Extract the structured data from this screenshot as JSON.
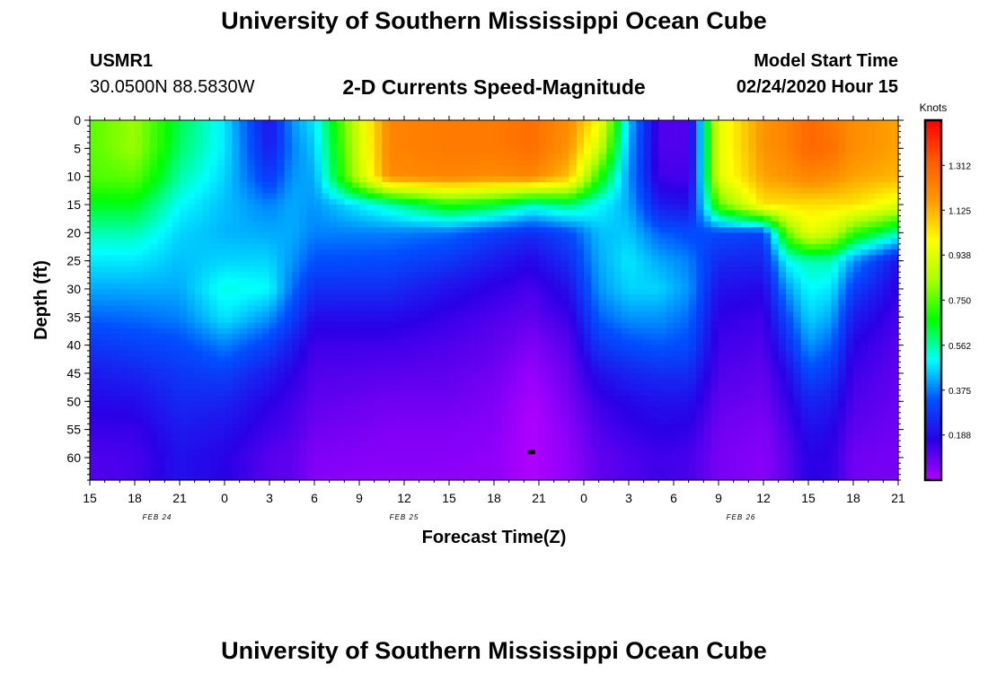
{
  "header": {
    "title_top": "University of Southern Mississippi Ocean Cube",
    "station_id": "USMR1",
    "station_coords": "30.0500N 88.5830W",
    "chart_subtitle": "2-D Currents Speed-Magnitude",
    "model_start_label": "Model Start Time",
    "model_start_value": "02/24/2020 Hour 15",
    "title_bottom": "University of Southern Mississippi Ocean Cube"
  },
  "colors": {
    "background": "#ffffff",
    "marker": "#000000",
    "colormap": [
      "#b000ff",
      "#2a00e6",
      "#0050ff",
      "#00ffff",
      "#00ff00",
      "#aaff00",
      "#ffff00",
      "#ff9900",
      "#ff5a00",
      "#ff0000"
    ]
  },
  "chart_data": {
    "type": "heatmap",
    "title": "2-D Currents Speed-Magnitude",
    "xlabel": "Forecast Time(Z)",
    "ylabel": "Depth (ft)",
    "x_hours_range": [
      0,
      54
    ],
    "x_tick_labels": [
      "15",
      "18",
      "21",
      "0",
      "3",
      "6",
      "9",
      "12",
      "15",
      "18",
      "21",
      "0",
      "3",
      "6",
      "9",
      "12",
      "15",
      "18",
      "21"
    ],
    "date_labels": [
      {
        "label": "FEB 24",
        "hour": 4.5
      },
      {
        "label": "FEB 25",
        "hour": 21
      },
      {
        "label": "FEB 26",
        "hour": 43.5
      }
    ],
    "ylim": [
      0,
      64
    ],
    "y_ticks": [
      0,
      5,
      10,
      15,
      20,
      25,
      30,
      35,
      40,
      45,
      50,
      55,
      60
    ],
    "colorbar": {
      "title": "Knots",
      "range": [
        0,
        1.5
      ],
      "tick_values": [
        0.188,
        0.375,
        0.562,
        0.75,
        0.938,
        1.125,
        1.312
      ],
      "tick_labels": [
        "0.188",
        "0.375",
        "0.562",
        "0.750",
        "0.938",
        "1.125",
        "1.312"
      ]
    },
    "marker": {
      "hour": 29.5,
      "depth": 59
    },
    "depth_profile": [
      0,
      5,
      10,
      15,
      20,
      25,
      30,
      35,
      40,
      45,
      50,
      55,
      60,
      64
    ],
    "speed_columns": [
      {
        "hour": 0,
        "speeds": [
          0.75,
          0.75,
          0.74,
          0.65,
          0.55,
          0.48,
          0.42,
          0.35,
          0.28,
          0.22,
          0.18,
          0.15,
          0.12,
          0.12
        ]
      },
      {
        "hour": 3,
        "speeds": [
          0.82,
          0.82,
          0.76,
          0.65,
          0.55,
          0.48,
          0.42,
          0.36,
          0.3,
          0.24,
          0.19,
          0.15,
          0.13,
          0.13
        ]
      },
      {
        "hour": 6,
        "speeds": [
          0.62,
          0.6,
          0.56,
          0.5,
          0.46,
          0.44,
          0.42,
          0.38,
          0.32,
          0.28,
          0.25,
          0.22,
          0.2,
          0.2
        ]
      },
      {
        "hour": 9,
        "speeds": [
          0.48,
          0.48,
          0.46,
          0.44,
          0.43,
          0.46,
          0.52,
          0.48,
          0.38,
          0.3,
          0.24,
          0.2,
          0.17,
          0.17
        ]
      },
      {
        "hour": 12,
        "speeds": [
          0.2,
          0.22,
          0.28,
          0.38,
          0.42,
          0.46,
          0.5,
          0.4,
          0.3,
          0.22,
          0.17,
          0.14,
          0.11,
          0.11
        ]
      },
      {
        "hour": 13.5,
        "speeds": [
          0.4,
          0.38,
          0.4,
          0.42,
          0.42,
          0.4,
          0.36,
          0.3,
          0.22,
          0.17,
          0.14,
          0.12,
          0.1,
          0.1
        ]
      },
      {
        "hour": 15,
        "speeds": [
          0.48,
          0.45,
          0.42,
          0.4,
          0.38,
          0.33,
          0.26,
          0.19,
          0.14,
          0.12,
          0.1,
          0.08,
          0.06,
          0.05
        ]
      },
      {
        "hour": 20,
        "speeds": [
          1.22,
          1.22,
          1.2,
          0.55,
          0.38,
          0.32,
          0.26,
          0.19,
          0.14,
          0.11,
          0.08,
          0.06,
          0.05,
          0.04
        ]
      },
      {
        "hour": 24,
        "speeds": [
          1.25,
          1.25,
          1.22,
          0.7,
          0.36,
          0.28,
          0.2,
          0.15,
          0.12,
          0.1,
          0.08,
          0.06,
          0.05,
          0.04
        ]
      },
      {
        "hour": 27,
        "speeds": [
          1.25,
          1.25,
          1.2,
          0.65,
          0.3,
          0.22,
          0.16,
          0.12,
          0.1,
          0.08,
          0.06,
          0.05,
          0.04,
          0.04
        ]
      },
      {
        "hour": 29.5,
        "speeds": [
          1.28,
          1.28,
          1.22,
          0.55,
          0.26,
          0.18,
          0.13,
          0.1,
          0.06,
          0.03,
          0.01,
          0.0,
          0.0,
          0.0
        ]
      },
      {
        "hour": 32,
        "speeds": [
          1.2,
          1.18,
          1.1,
          0.6,
          0.32,
          0.26,
          0.2,
          0.15,
          0.11,
          0.09,
          0.07,
          0.05,
          0.04,
          0.04
        ]
      },
      {
        "hour": 34,
        "speeds": [
          1.0,
          0.9,
          0.7,
          0.5,
          0.44,
          0.42,
          0.4,
          0.35,
          0.28,
          0.2,
          0.15,
          0.12,
          0.1,
          0.1
        ]
      },
      {
        "hour": 36,
        "speeds": [
          0.45,
          0.42,
          0.4,
          0.42,
          0.45,
          0.48,
          0.46,
          0.4,
          0.32,
          0.24,
          0.18,
          0.15,
          0.12,
          0.12
        ]
      },
      {
        "hour": 38,
        "speeds": [
          0.12,
          0.12,
          0.14,
          0.22,
          0.35,
          0.42,
          0.46,
          0.4,
          0.34,
          0.26,
          0.2,
          0.17,
          0.14,
          0.14
        ]
      },
      {
        "hour": 40,
        "speeds": [
          0.12,
          0.12,
          0.13,
          0.2,
          0.32,
          0.38,
          0.4,
          0.36,
          0.32,
          0.26,
          0.2,
          0.16,
          0.13,
          0.13
        ]
      },
      {
        "hour": 42,
        "speeds": [
          0.95,
          0.95,
          0.94,
          0.75,
          0.32,
          0.25,
          0.2,
          0.16,
          0.14,
          0.12,
          0.1,
          0.08,
          0.07,
          0.07
        ]
      },
      {
        "hour": 45,
        "speeds": [
          1.18,
          1.18,
          1.15,
          1.05,
          0.3,
          0.24,
          0.18,
          0.14,
          0.12,
          0.1,
          0.08,
          0.06,
          0.05,
          0.05
        ]
      },
      {
        "hour": 46.5,
        "speeds": [
          1.22,
          1.22,
          1.18,
          1.05,
          0.75,
          0.5,
          0.4,
          0.32,
          0.25,
          0.18,
          0.15,
          0.12,
          0.1,
          0.1
        ]
      },
      {
        "hour": 48,
        "speeds": [
          1.3,
          1.3,
          1.22,
          1.05,
          0.95,
          0.55,
          0.5,
          0.46,
          0.4,
          0.32,
          0.24,
          0.2,
          0.17,
          0.17
        ]
      },
      {
        "hour": 49.5,
        "speeds": [
          1.25,
          1.28,
          1.2,
          1.05,
          0.9,
          0.55,
          0.48,
          0.42,
          0.35,
          0.28,
          0.22,
          0.18,
          0.16,
          0.16
        ]
      },
      {
        "hour": 51,
        "speeds": [
          1.2,
          1.2,
          1.15,
          1.05,
          0.72,
          0.4,
          0.3,
          0.22,
          0.17,
          0.14,
          0.12,
          0.1,
          0.08,
          0.08
        ]
      },
      {
        "hour": 54,
        "speeds": [
          1.15,
          1.15,
          1.12,
          0.95,
          0.55,
          0.2,
          0.16,
          0.13,
          0.11,
          0.1,
          0.09,
          0.08,
          0.07,
          0.07
        ]
      }
    ]
  }
}
